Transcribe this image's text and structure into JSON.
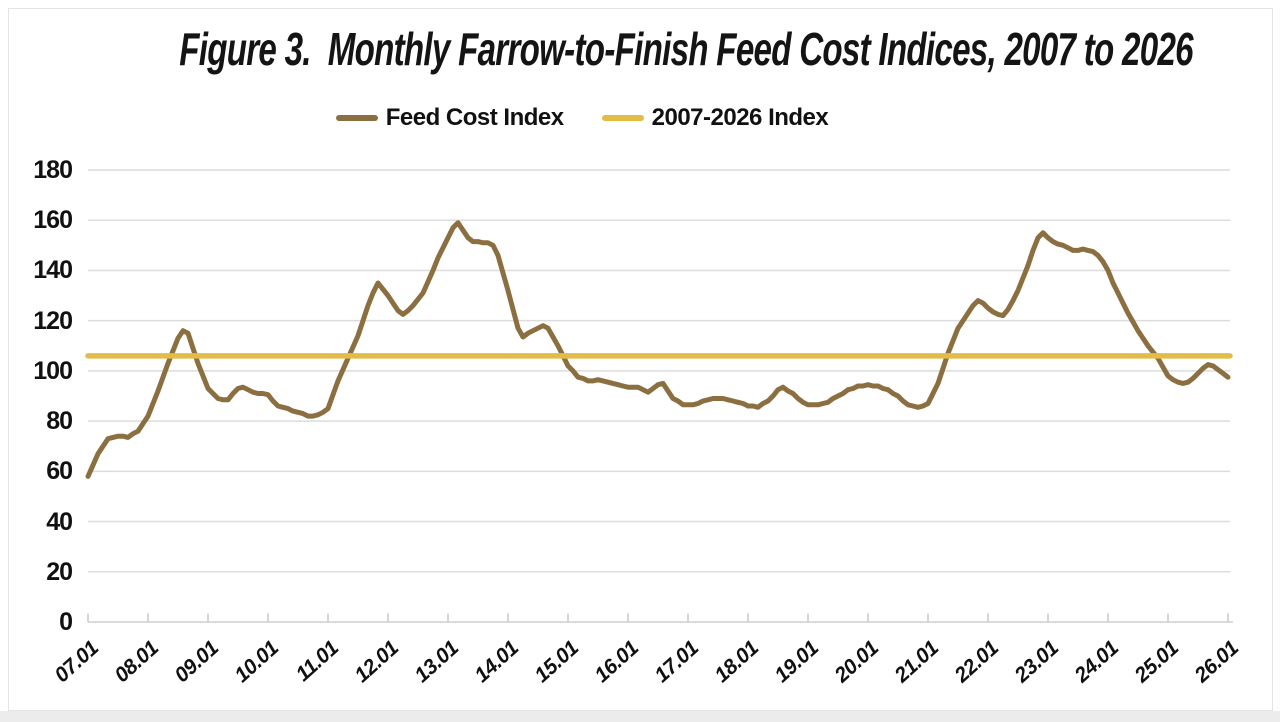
{
  "title": "Figure 3.  Monthly Farrow-to-Finish Feed Cost Indices, 2007 to 2026",
  "legend": [
    {
      "label": "Feed Cost Index",
      "color": "#8B6F40"
    },
    {
      "label": "2007-2026 Index",
      "color": "#E2BC47"
    }
  ],
  "colors": {
    "gridline": "#DCDCDC",
    "axis_line": "#CFCFCF",
    "tick": "#C9C9C9",
    "text": "#111111"
  },
  "chart_data": {
    "type": "line",
    "title": "Figure 3.  Monthly Farrow-to-Finish Feed Cost Indices, 2007 to 2026",
    "xlabel": "",
    "ylabel": "",
    "ylim": [
      0,
      180
    ],
    "y_ticks": [
      0,
      20,
      40,
      60,
      80,
      100,
      120,
      140,
      160,
      180
    ],
    "x_tick_labels": [
      "07.01",
      "08.01",
      "09.01",
      "10.01",
      "11.01",
      "12.01",
      "13.01",
      "14.01",
      "15.01",
      "16.01",
      "17.01",
      "18.01",
      "19.01",
      "20.01",
      "21.01",
      "22.01",
      "23.01",
      "24.01",
      "25.01",
      "26.01"
    ],
    "x_start": "2007-01",
    "x_frequency": "monthly",
    "grid": "horizontal",
    "legend_position": "top-center",
    "series": [
      {
        "name": "Feed Cost Index",
        "color": "#8B6F40",
        "values": [
          58,
          62.5,
          67,
          70,
          73,
          73.5,
          74,
          74,
          73.5,
          75,
          76,
          79,
          82,
          87,
          92,
          97.5,
          103,
          108,
          113,
          116,
          115,
          109,
          103,
          98,
          93,
          91,
          89,
          88.5,
          88.5,
          91,
          93,
          93.5,
          92.5,
          91.5,
          91,
          91,
          90.5,
          88,
          86,
          85.5,
          85,
          84,
          83.5,
          83,
          82,
          82,
          82.5,
          83.5,
          85,
          90.5,
          96,
          100.5,
          105,
          109.5,
          114,
          120,
          126,
          131,
          135,
          132.5,
          130,
          127,
          124,
          122.5,
          124,
          126,
          128.5,
          131,
          135.5,
          140,
          145,
          149,
          153,
          157,
          159,
          156,
          153,
          151.5,
          151.5,
          151,
          151,
          150,
          146,
          139,
          132,
          124.5,
          117,
          113.5,
          115,
          116,
          117,
          118,
          117,
          113.5,
          110,
          106,
          102,
          100,
          97.5,
          97,
          96,
          96,
          96.5,
          96,
          95.5,
          95,
          94.5,
          94,
          93.5,
          93.5,
          93.5,
          92.5,
          91.5,
          93,
          94.5,
          95,
          92,
          89,
          88,
          86.5,
          86.5,
          86.5,
          87,
          88,
          88.5,
          89,
          89,
          89,
          88.5,
          88,
          87.5,
          87,
          86,
          86,
          85.5,
          87,
          88,
          90,
          92.5,
          93.5,
          92,
          91,
          89,
          87.5,
          86.5,
          86.5,
          86.5,
          87,
          87.5,
          89,
          90,
          91,
          92.5,
          93,
          94,
          94,
          94.5,
          94,
          94,
          93,
          92.5,
          91,
          90,
          88,
          86.5,
          86,
          85.5,
          86,
          87,
          91,
          95,
          101,
          107,
          112,
          117,
          120,
          123,
          126,
          128,
          127,
          125,
          123.5,
          122.5,
          122,
          124.5,
          128,
          132,
          137,
          142,
          148,
          153,
          155,
          153,
          151.5,
          150.5,
          150,
          149,
          148,
          148,
          148.5,
          148,
          147.5,
          146,
          143.5,
          140,
          135,
          131,
          127,
          123,
          119.5,
          116,
          113,
          110,
          107.5,
          105,
          101.5,
          98,
          96.5,
          95.5,
          95,
          95.5,
          97,
          99,
          101,
          102.5,
          102,
          100.5,
          99,
          97.5
        ]
      },
      {
        "name": "2007-2026 Index",
        "color": "#E2BC47",
        "type": "constant",
        "value": 106
      }
    ]
  }
}
